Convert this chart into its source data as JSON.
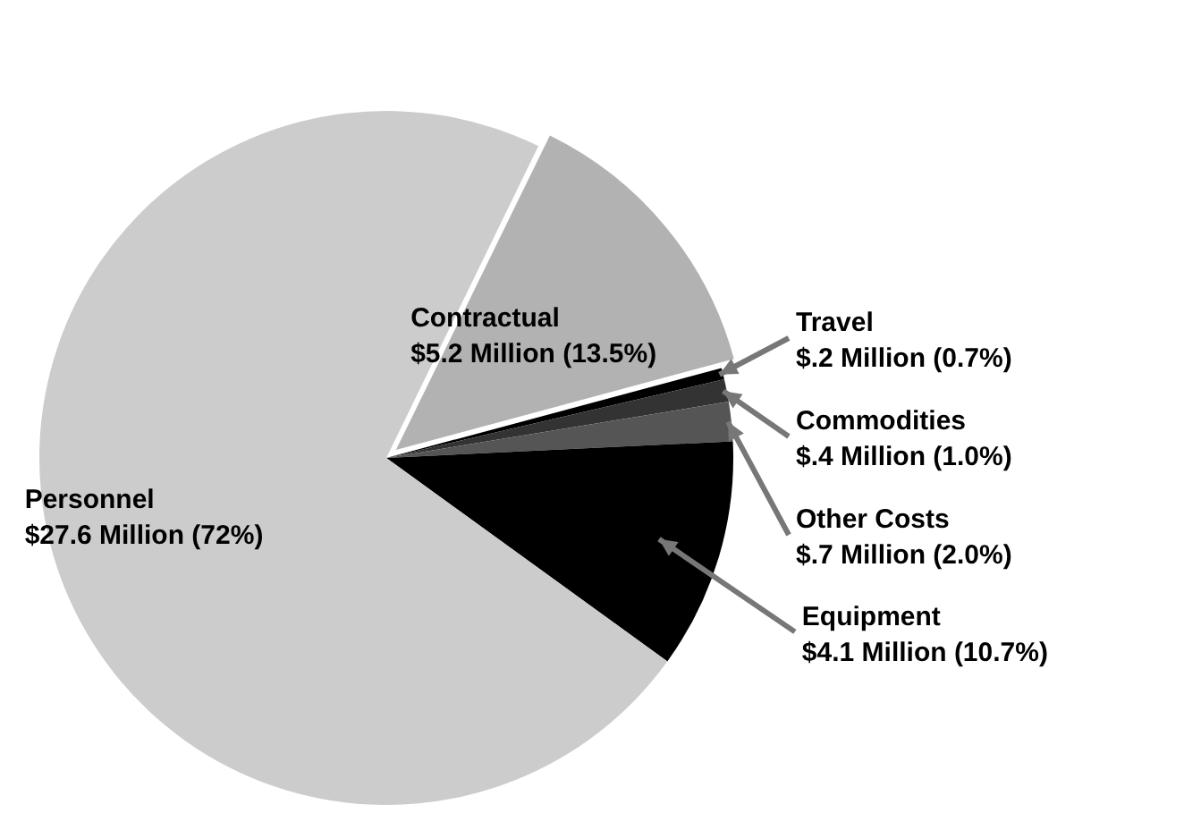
{
  "chart_data": {
    "type": "pie",
    "categories": [
      "Contractual",
      "Travel",
      "Commodities",
      "Other Costs",
      "Equipment",
      "Personnel"
    ],
    "values": [
      5.2,
      0.2,
      0.4,
      0.7,
      4.1,
      27.6
    ],
    "value_labels": [
      "$5.2 Million (13.5%)",
      "$.2 Million (0.7%)",
      "$.4 Million (1.0%)",
      "$.7 Million (2.0%)",
      "$4.1 Million (10.7%)",
      "$27.6 Million (72%)"
    ],
    "colors": [
      "#b2b2b2",
      "#000000",
      "#333333",
      "#555555",
      "#000000",
      "#cccccc"
    ],
    "legend": false
  }
}
